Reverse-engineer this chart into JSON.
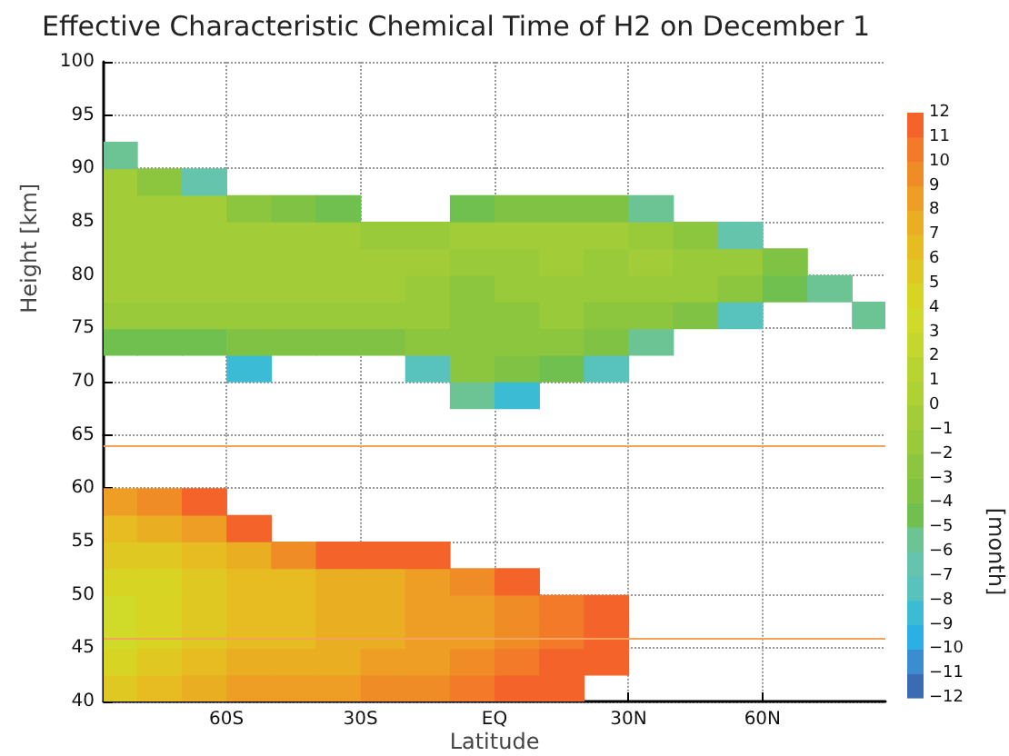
{
  "chart_data": [
    {
      "type": "heatmap",
      "title": "Effective Characteristic Chemical Time of H2 on December 1",
      "ylabel": "Height [km]",
      "clabel": "[month]",
      "x": [
        -85,
        -75,
        -65,
        -55,
        -45,
        -35,
        -25,
        -15,
        -5,
        5,
        15,
        25,
        35,
        45,
        55,
        65,
        75,
        85
      ],
      "y": [
        68.75,
        71.25,
        73.75,
        76.25,
        78.75,
        81.25,
        83.75,
        86.25,
        88.75,
        91.25
      ],
      "cells": [
        [
          null,
          null,
          null,
          null,
          null,
          null,
          null,
          null,
          -6,
          -9,
          null,
          null,
          null,
          null,
          null,
          null,
          null,
          null
        ],
        [
          null,
          null,
          null,
          -9,
          null,
          null,
          null,
          -8,
          -3,
          -4,
          -5,
          -8,
          null,
          null,
          null,
          null,
          null,
          null
        ],
        [
          -5,
          -5,
          -5,
          -4,
          -4,
          -4,
          -4,
          -3,
          -3,
          -3,
          -3,
          -4,
          -6,
          null,
          null,
          null,
          null,
          null
        ],
        [
          -2,
          -2,
          -2,
          -2,
          -2,
          -2,
          -2,
          -2,
          -3,
          -3,
          -2,
          -3,
          -3,
          -4,
          -8,
          null,
          null,
          -6
        ],
        [
          -1,
          -1,
          -1,
          -1,
          -1,
          -1,
          -1,
          -2,
          -3,
          -2,
          -2,
          -2,
          -2,
          -2,
          -3,
          -5,
          -6,
          null
        ],
        [
          -1,
          -1,
          -1,
          -1,
          -1,
          -1,
          -1,
          -1,
          -2,
          -2,
          -1,
          -2,
          -1,
          -2,
          -2,
          -4,
          null,
          null
        ],
        [
          -1,
          -1,
          -1,
          -1,
          -1,
          -1,
          -2,
          -2,
          -1,
          -1,
          -1,
          -1,
          -2,
          -3,
          -7,
          null,
          null,
          null
        ],
        [
          -1,
          -1,
          -1,
          -3,
          -4,
          -5,
          null,
          null,
          -5,
          -4,
          -4,
          -4,
          -6,
          null,
          null,
          null,
          null,
          null
        ],
        [
          -1,
          -3,
          -7,
          null,
          null,
          null,
          null,
          null,
          null,
          null,
          null,
          null,
          null,
          null,
          null,
          null,
          null,
          null
        ],
        [
          -6,
          null,
          null,
          null,
          null,
          null,
          null,
          null,
          null,
          null,
          null,
          null,
          null,
          null,
          null,
          null,
          null,
          null
        ]
      ],
      "xlim": [
        -87.5,
        87.5
      ],
      "xticks": [
        -60,
        -30,
        0,
        30,
        60
      ],
      "ylim": [
        65,
        100
      ],
      "yticks": [
        70,
        75,
        80,
        85,
        90,
        95,
        100
      ],
      "clim": [
        -12,
        0
      ],
      "cticks": [
        -12,
        -11,
        -10,
        -9,
        -8,
        -7,
        -6,
        -5,
        -4,
        -3,
        -2,
        -1,
        0
      ],
      "tick_labels": "y",
      "grid": true,
      "line_style": "dotted"
    },
    {
      "type": "heatmap",
      "xlabel": "Latitude",
      "x": [
        -85,
        -75,
        -65,
        -55,
        -45,
        -35,
        -25,
        -15,
        -5,
        5,
        15,
        25
      ],
      "y": [
        41.25,
        43.75,
        46.25,
        48.75,
        51.25,
        53.75,
        56.25,
        58.75
      ],
      "cells": [
        [
          5,
          6,
          7,
          8,
          8,
          8,
          9,
          9,
          10,
          11,
          12,
          null
        ],
        [
          4,
          5,
          6,
          7,
          7,
          7,
          8,
          8,
          9,
          10,
          11,
          12
        ],
        [
          3,
          4,
          5,
          6,
          6,
          7,
          7,
          8,
          8,
          9,
          10,
          11
        ],
        [
          3,
          4,
          5,
          6,
          6,
          7,
          7,
          8,
          8,
          9,
          10,
          11
        ],
        [
          4,
          4,
          5,
          6,
          6,
          7,
          7,
          8,
          9,
          11,
          null,
          null
        ],
        [
          5,
          5,
          6,
          7,
          9,
          11,
          11,
          11,
          null,
          null,
          null,
          null
        ],
        [
          6,
          7,
          8,
          11,
          null,
          null,
          null,
          null,
          null,
          null,
          null,
          null
        ],
        [
          8,
          9,
          11,
          null,
          null,
          null,
          null,
          null,
          null,
          null,
          null,
          null
        ]
      ],
      "xlim": [
        -87.5,
        87.5
      ],
      "xticks": [
        {
          "value": -60,
          "label": "60S"
        },
        {
          "value": -30,
          "label": "30S"
        },
        {
          "value": 0,
          "label": "EQ"
        },
        {
          "value": 30,
          "label": "30N"
        },
        {
          "value": 60,
          "label": "60N"
        }
      ],
      "ylim": [
        40,
        65
      ],
      "yticks": [
        40,
        45,
        50,
        55,
        60,
        65
      ],
      "clim": [
        0,
        12
      ],
      "cticks": [
        1,
        2,
        3,
        4,
        5,
        6,
        7,
        8,
        9,
        10,
        11,
        12
      ],
      "ref_lines": [
        {
          "axis": "y",
          "value": 64,
          "color": "#f5a35a"
        },
        {
          "axis": "y",
          "value": 46,
          "color": "#f5a35a"
        }
      ],
      "grid": true,
      "line_style": "dotted"
    }
  ]
}
